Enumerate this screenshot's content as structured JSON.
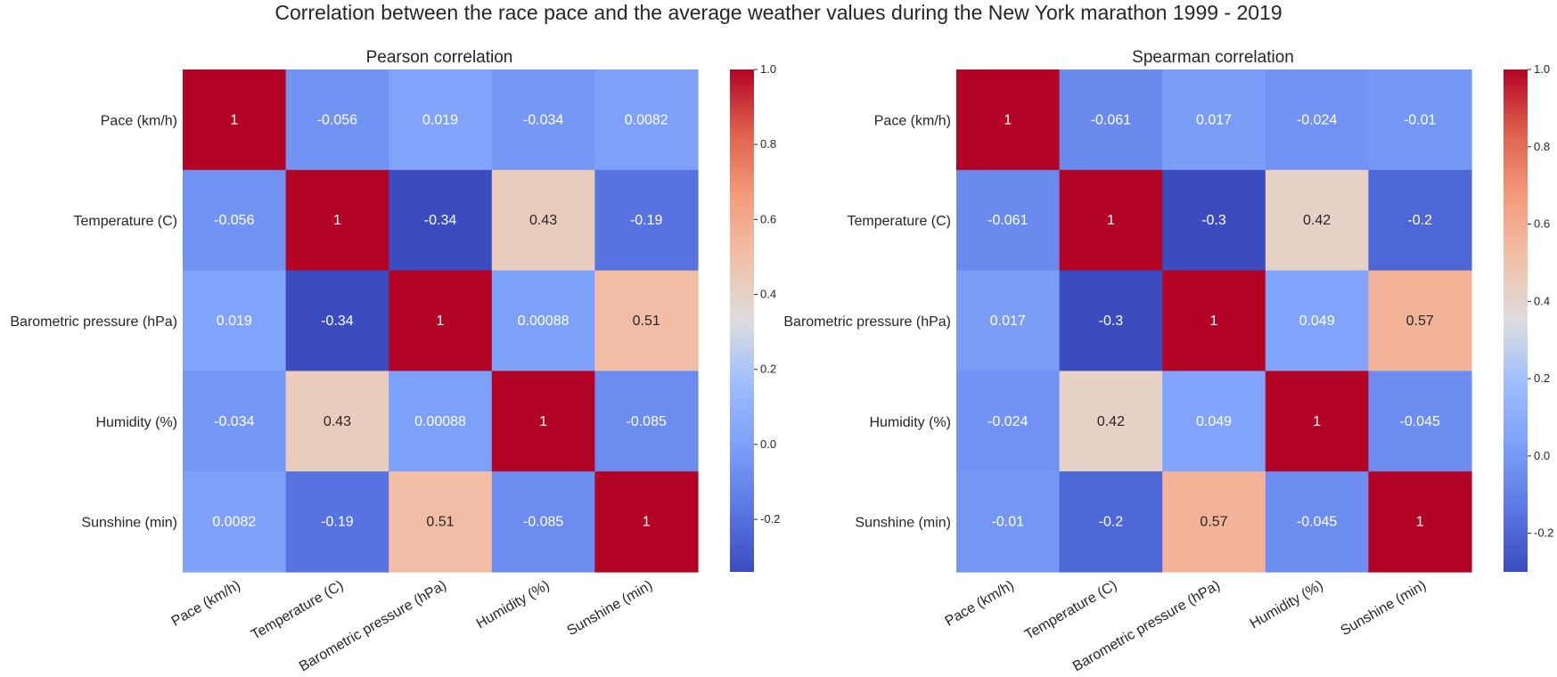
{
  "title": "Correlation between the race pace and the average weather values during the New York marathon 1999 - 2019",
  "chart_data": [
    {
      "type": "heatmap",
      "title": "Pearson correlation",
      "labels": [
        "Pace (km/h)",
        "Temperature (C)",
        "Barometric pressure (hPa)",
        "Humidity (%)",
        "Sunshine (min)"
      ],
      "values": [
        [
          1,
          -0.056,
          0.019,
          -0.034,
          0.0082
        ],
        [
          -0.056,
          1,
          -0.34,
          0.43,
          -0.19
        ],
        [
          0.019,
          -0.34,
          1,
          0.00088,
          0.51
        ],
        [
          -0.034,
          0.43,
          0.00088,
          1,
          -0.085
        ],
        [
          0.0082,
          -0.19,
          0.51,
          -0.085,
          1
        ]
      ],
      "cell_labels": [
        [
          "1",
          "-0.056",
          "0.019",
          "-0.034",
          "0.0082"
        ],
        [
          "-0.056",
          "1",
          "-0.34",
          "0.43",
          "-0.19"
        ],
        [
          "0.019",
          "-0.34",
          "1",
          "0.00088",
          "0.51"
        ],
        [
          "-0.034",
          "0.43",
          "0.00088",
          "1",
          "-0.085"
        ],
        [
          "0.0082",
          "-0.19",
          "0.51",
          "-0.085",
          "1"
        ]
      ],
      "colormap": "coolwarm",
      "vmin": -0.34,
      "vmax": 1,
      "colorbar_ticks": [
        "1.0",
        "0.8",
        "0.6",
        "0.4",
        "0.2",
        "0.0",
        "-0.2"
      ]
    },
    {
      "type": "heatmap",
      "title": "Spearman correlation",
      "labels": [
        "Pace (km/h)",
        "Temperature (C)",
        "Barometric pressure (hPa)",
        "Humidity (%)",
        "Sunshine (min)"
      ],
      "values": [
        [
          1,
          -0.061,
          0.017,
          -0.024,
          -0.01
        ],
        [
          -0.061,
          1,
          -0.3,
          0.42,
          -0.2
        ],
        [
          0.017,
          -0.3,
          1,
          0.049,
          0.57
        ],
        [
          -0.024,
          0.42,
          0.049,
          1,
          -0.045
        ],
        [
          -0.01,
          -0.2,
          0.57,
          -0.045,
          1
        ]
      ],
      "cell_labels": [
        [
          "1",
          "-0.061",
          "0.017",
          "-0.024",
          "-0.01"
        ],
        [
          "-0.061",
          "1",
          "-0.3",
          "0.42",
          "-0.2"
        ],
        [
          "0.017",
          "-0.3",
          "1",
          "0.049",
          "0.57"
        ],
        [
          "-0.024",
          "0.42",
          "0.049",
          "1",
          "-0.045"
        ],
        [
          "-0.01",
          "-0.2",
          "0.57",
          "-0.045",
          "1"
        ]
      ],
      "colormap": "coolwarm",
      "vmin": -0.3,
      "vmax": 1,
      "colorbar_ticks": [
        "1.0",
        "0.8",
        "0.6",
        "0.4",
        "0.2",
        "0.0",
        "-0.2"
      ]
    }
  ]
}
